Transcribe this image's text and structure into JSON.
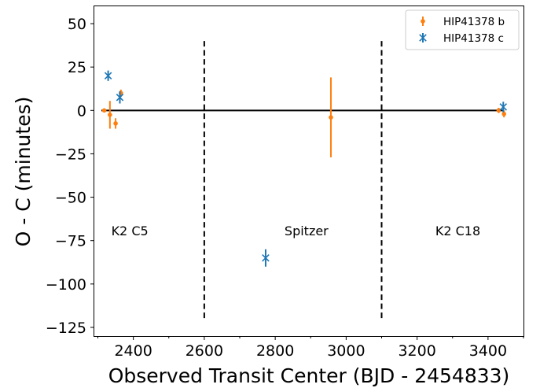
{
  "chart_data": {
    "type": "scatter",
    "title": "",
    "xlabel": "Observed Transit Center (BJD - 2454833)",
    "ylabel": "O - C (minutes)",
    "xlim": [
      2290,
      3500
    ],
    "ylim": [
      -130,
      60
    ],
    "xticks": [
      2400,
      2600,
      2800,
      3000,
      3200,
      3400
    ],
    "yticks": [
      50,
      25,
      0,
      -25,
      -50,
      -75,
      -100,
      -125
    ],
    "xtick_labels": [
      "2400",
      "2600",
      "2800",
      "3000",
      "3200",
      "3400"
    ],
    "ytick_labels": [
      "50",
      "25",
      "0",
      "−25",
      "−50",
      "−75",
      "−100",
      "−125"
    ],
    "grid": false,
    "legend": {
      "position": "top-right"
    },
    "zero_line": {
      "y": 0,
      "x_start": 2310,
      "x_end": 3445,
      "color": "#000000"
    },
    "dividers": [
      {
        "x": 2600,
        "y_range": [
          -120,
          40
        ]
      },
      {
        "x": 3100,
        "y_range": [
          -120,
          40
        ]
      }
    ],
    "regions": [
      {
        "label": "K2 C5",
        "x": 2390,
        "y": -72
      },
      {
        "label": "Spitzer",
        "x": 2888,
        "y": -72
      },
      {
        "label": "K2 C18",
        "x": 3315,
        "y": -72
      }
    ],
    "series": [
      {
        "name": "HIP41378 b",
        "marker": "point",
        "color": "#ff7f0e",
        "points": [
          {
            "x": 2318,
            "y": 0,
            "yerr": 1
          },
          {
            "x": 2334,
            "y": -2.5,
            "yerr": 8
          },
          {
            "x": 2350,
            "y": -7.5,
            "yerr": 3
          },
          {
            "x": 2365,
            "y": 10,
            "yerr": 2
          },
          {
            "x": 2957,
            "y": -4,
            "yerr": 23
          },
          {
            "x": 3430,
            "y": 0,
            "yerr": 1.5
          },
          {
            "x": 3445,
            "y": -2,
            "yerr": 2
          }
        ]
      },
      {
        "name": "HIP41378 c",
        "marker": "x",
        "color": "#1f77b4",
        "points": [
          {
            "x": 2329,
            "y": 20,
            "yerr": 3
          },
          {
            "x": 2362,
            "y": 7.5,
            "yerr": 3.5
          },
          {
            "x": 2773,
            "y": -85,
            "yerr": 5
          },
          {
            "x": 3443,
            "y": 2,
            "yerr": 3
          }
        ]
      }
    ]
  }
}
